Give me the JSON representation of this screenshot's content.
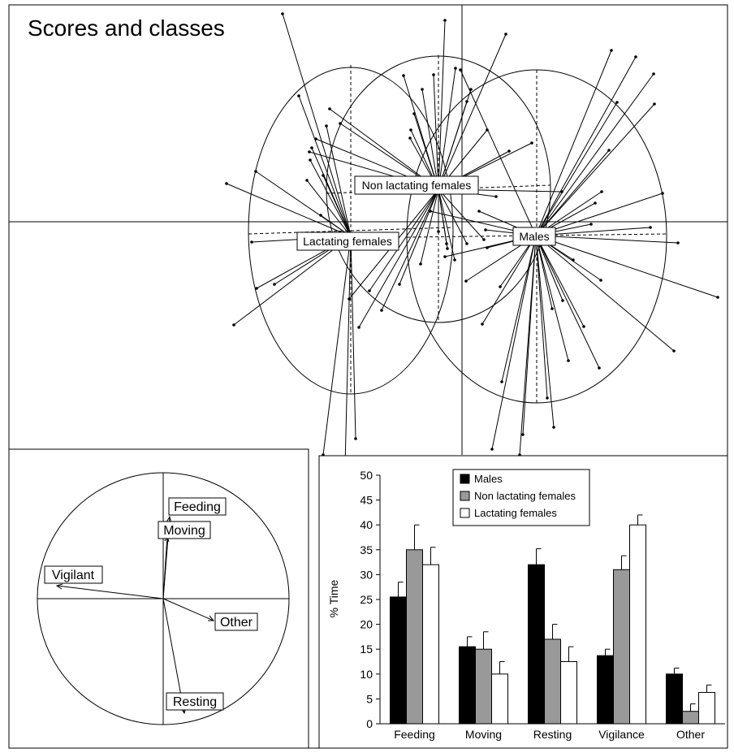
{
  "scores_panel": {
    "title": "Scores and classes",
    "classes": [
      "Males",
      "Non lactating females",
      "Lactating females"
    ]
  },
  "circle_panel": {
    "variables": [
      "Feeding",
      "Moving",
      "Vigilant",
      "Other",
      "Resting"
    ]
  },
  "chart_data": {
    "type": "bar",
    "categories": [
      "Feeding",
      "Moving",
      "Resting",
      "Vigilance",
      "Other"
    ],
    "series": [
      {
        "name": "Males",
        "values": [
          25.5,
          15.5,
          32,
          13.7,
          10
        ],
        "errors": [
          3,
          2,
          3.2,
          1.3,
          1.2
        ],
        "color": "#000000"
      },
      {
        "name": "Non lactating females",
        "values": [
          35,
          15,
          17,
          31,
          2.5
        ],
        "errors": [
          5,
          3.5,
          3,
          2.8,
          1.5
        ],
        "color": "#999999"
      },
      {
        "name": "Lactating females",
        "values": [
          32,
          10,
          12.5,
          40,
          6.3
        ],
        "errors": [
          3.5,
          2.5,
          3,
          2,
          1.5
        ],
        "color": "#ffffff"
      }
    ],
    "ylabel": "% Time",
    "xlabel": "",
    "ylim": [
      0,
      50
    ],
    "yticks": [
      0,
      5,
      10,
      15,
      20,
      25,
      30,
      35,
      40,
      45,
      50
    ],
    "legend_position": "top-center"
  }
}
